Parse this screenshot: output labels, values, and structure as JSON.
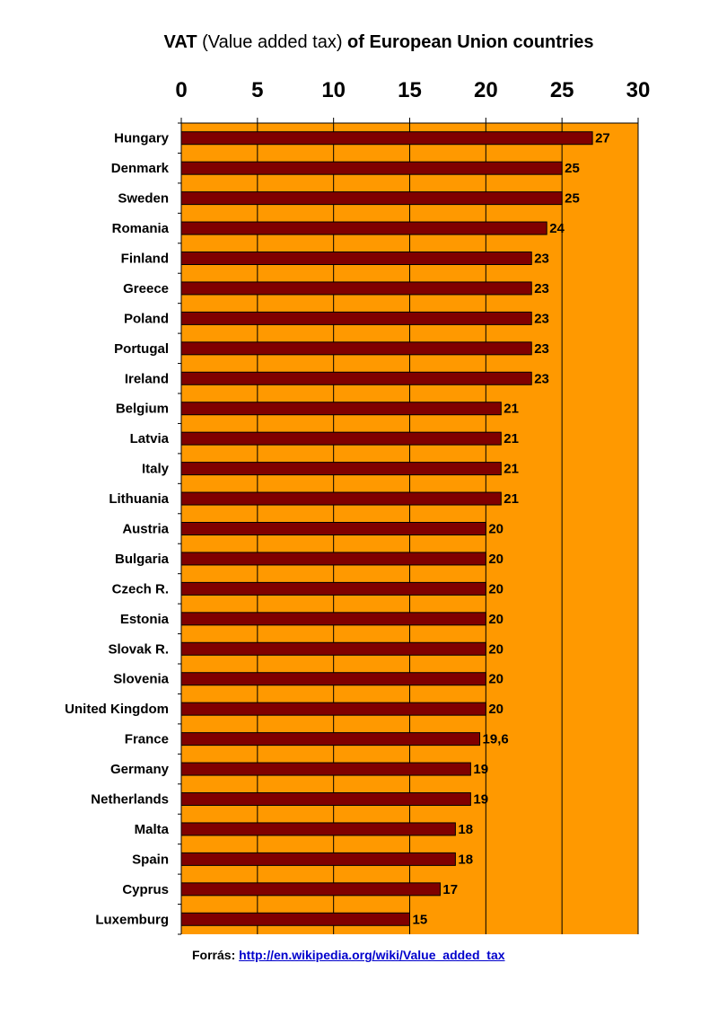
{
  "chart_data": {
    "type": "bar",
    "orientation": "horizontal",
    "title": {
      "part1": "VAT",
      "part2": " (Value added tax) ",
      "part3": "of European Union countries"
    },
    "xlim": [
      0,
      30
    ],
    "ticks": [
      "0",
      "5",
      "10",
      "15",
      "20",
      "25",
      "30"
    ],
    "categories": [
      "Hungary",
      "Denmark",
      "Sweden",
      "Romania",
      "Finland",
      "Greece",
      "Poland",
      "Portugal",
      "Ireland",
      "Belgium",
      "Latvia",
      "Italy",
      "Lithuania",
      "Austria",
      "Bulgaria",
      "Czech R.",
      "Estonia",
      "Slovak R.",
      "Slovenia",
      "United Kingdom",
      "France",
      "Germany",
      "Netherlands",
      "Malta",
      "Spain",
      "Cyprus",
      "Luxemburg"
    ],
    "values": [
      27,
      25,
      25,
      24,
      23,
      23,
      23,
      23,
      23,
      21,
      21,
      21,
      21,
      20,
      20,
      20,
      20,
      20,
      20,
      20,
      19.6,
      19,
      19,
      18,
      18,
      17,
      15
    ],
    "labels": [
      "27",
      "25",
      "25",
      "24",
      "23",
      "23",
      "23",
      "23",
      "23",
      "21",
      "21",
      "21",
      "21",
      "20",
      "20",
      "20",
      "20",
      "20",
      "20",
      "20",
      "19,6",
      "19",
      "19",
      "18",
      "18",
      "17",
      "15"
    ],
    "colors": {
      "plot_background": "#ff9900",
      "bar": "#800000",
      "bar_border": "#000000",
      "grid": "#000000"
    }
  },
  "source": {
    "label": "Forrás:",
    "url": "http://en.wikipedia.org/wiki/Value_added_tax"
  }
}
